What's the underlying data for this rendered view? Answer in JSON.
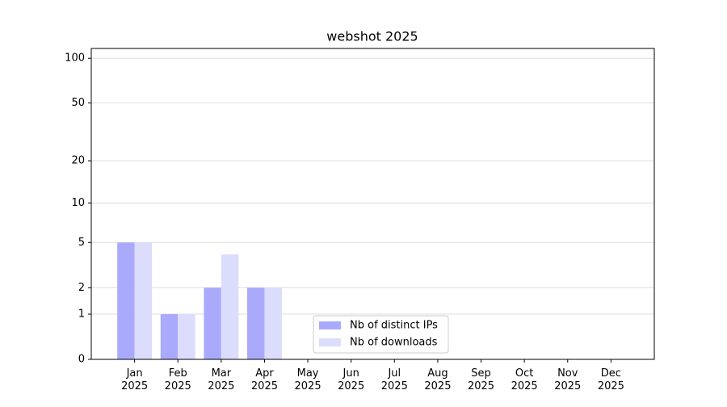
{
  "chart_data": {
    "type": "bar",
    "title": "webshot 2025",
    "categories": [
      "Jan 2025",
      "Feb 2025",
      "Mar 2025",
      "Apr 2025",
      "May 2025",
      "Jun 2025",
      "Jul 2025",
      "Aug 2025",
      "Sep 2025",
      "Oct 2025",
      "Nov 2025",
      "Dec 2025"
    ],
    "series": [
      {
        "name": "Nb of distinct IPs",
        "color": "#aaaafd",
        "values": [
          5,
          1,
          2,
          2,
          0,
          0,
          0,
          0,
          0,
          0,
          0,
          0
        ]
      },
      {
        "name": "Nb of downloads",
        "color": "#dcdcfc",
        "values": [
          5,
          1,
          4,
          2,
          0,
          0,
          0,
          0,
          0,
          0,
          0,
          0
        ]
      }
    ],
    "y_scale": "log1p",
    "ylim": [
      0,
      116.5
    ],
    "yticks": [
      0,
      1,
      2,
      5,
      10,
      20,
      50,
      100
    ],
    "grid": true,
    "legend": "lower center"
  }
}
